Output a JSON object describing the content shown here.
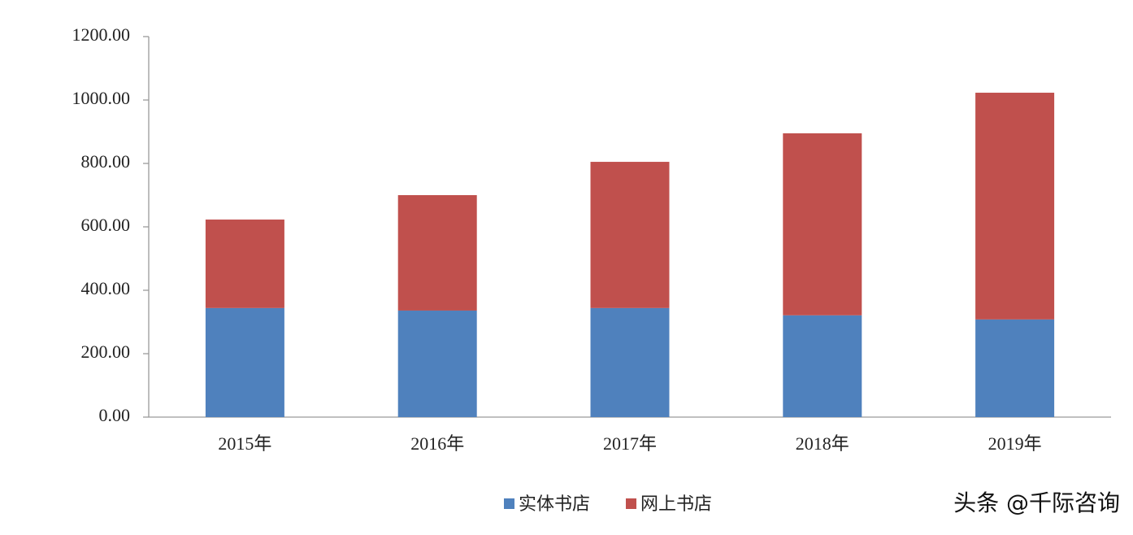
{
  "chart_data": {
    "type": "stacked_bar",
    "categories": [
      "2015年",
      "2016年",
      "2017年",
      "2018年",
      "2019年"
    ],
    "series": [
      {
        "name": "实体书店",
        "color": "#4f81bd",
        "values": [
          344,
          336,
          344,
          321,
          308
        ]
      },
      {
        "name": "网上书店",
        "color": "#c0504d",
        "values": [
          279,
          364,
          461,
          574,
          715
        ]
      }
    ],
    "ylim": [
      0,
      1200
    ],
    "yticks": [
      {
        "value": 0,
        "label": "0.00"
      },
      {
        "value": 200,
        "label": "200.00"
      },
      {
        "value": 400,
        "label": "400.00"
      },
      {
        "value": 600,
        "label": "600.00"
      },
      {
        "value": 800,
        "label": "800.00"
      },
      {
        "value": 1000,
        "label": "1000.00"
      },
      {
        "value": 1200,
        "label": "1200.00"
      }
    ],
    "legend": "bottom",
    "annotation": "头条 @千际咨询"
  }
}
